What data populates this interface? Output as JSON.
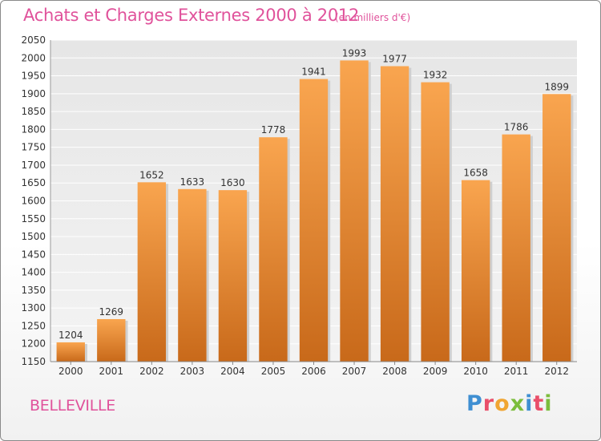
{
  "header": {
    "title": "Achats et Charges Externes 2000 à 2012",
    "unit": "(en milliers d'€)"
  },
  "footer": {
    "commune": "BELLEVILLE",
    "logo_letters": [
      "P",
      "r",
      "o",
      "x",
      "i",
      "t",
      "i"
    ],
    "logo_colors": [
      "#3f8fd2",
      "#e94f6a",
      "#f0a532",
      "#7cbd3c",
      "#3f8fd2",
      "#e94f6a",
      "#7cbd3c"
    ]
  },
  "chart_data": {
    "type": "bar",
    "title": "Achats et Charges Externes 2000 à 2012",
    "xlabel": "",
    "ylabel": "",
    "categories": [
      "2000",
      "2001",
      "2002",
      "2003",
      "2004",
      "2005",
      "2006",
      "2007",
      "2008",
      "2009",
      "2010",
      "2011",
      "2012"
    ],
    "values": [
      1204,
      1269,
      1652,
      1633,
      1630,
      1778,
      1941,
      1993,
      1977,
      1932,
      1658,
      1786,
      1899
    ],
    "ylim": [
      1150,
      2050
    ],
    "yticks": [
      1150,
      1200,
      1250,
      1300,
      1350,
      1400,
      1450,
      1500,
      1550,
      1600,
      1650,
      1700,
      1750,
      1800,
      1850,
      1900,
      1950,
      2000,
      2050
    ],
    "grid": true,
    "bar_color_top": "#f9a54f",
    "bar_color_bottom": "#c8691a"
  }
}
